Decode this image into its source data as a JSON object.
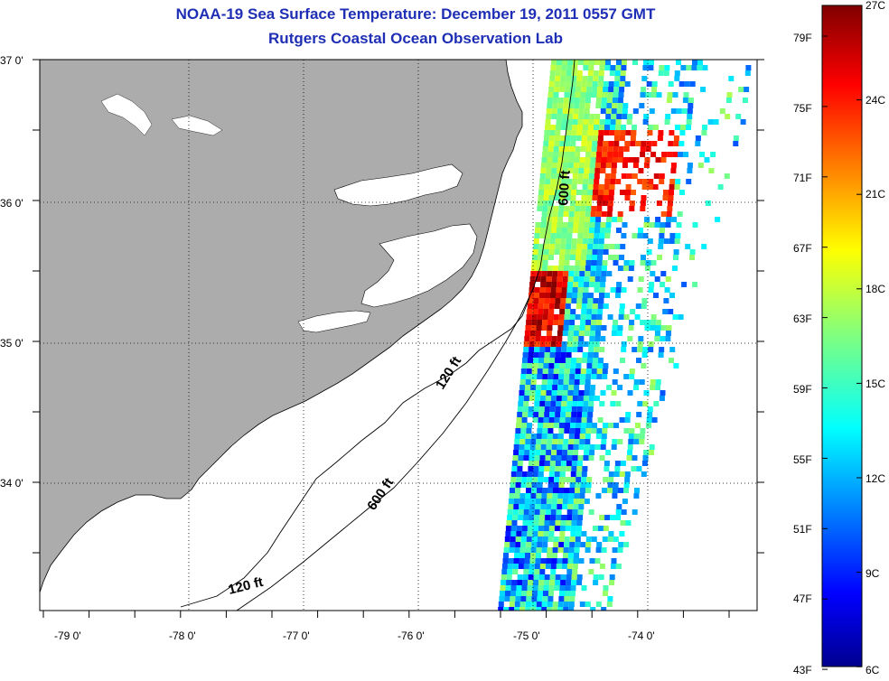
{
  "title": "NOAA-19 Sea Surface Temperature:  December 19, 2011 0557 GMT",
  "subtitle": "Rutgers Coastal Ocean Observation Lab",
  "map": {
    "lon_labels": [
      "-79 0'",
      "-78 0'",
      "-77 0'",
      "-76 0'",
      "-75 0'",
      "-74 0'"
    ],
    "lat_labels": [
      "37 0'",
      "36 0'",
      "35 0'",
      "34 0'"
    ],
    "contour_labels": [
      "600 ft",
      "120 ft",
      "600 ft",
      "120 ft"
    ],
    "colors": {
      "land": "#acacac",
      "ocean": "#ffffff",
      "grid": "#000000"
    }
  },
  "colorbar": {
    "fahrenheit_labels": [
      "79F",
      "75F",
      "71F",
      "67F",
      "63F",
      "59F",
      "55F",
      "51F",
      "47F",
      "43F"
    ],
    "celsius_labels": [
      "27C",
      "24C",
      "21C",
      "18C",
      "15C",
      "12C",
      "9C",
      "6C"
    ],
    "colormap": "jet"
  }
}
